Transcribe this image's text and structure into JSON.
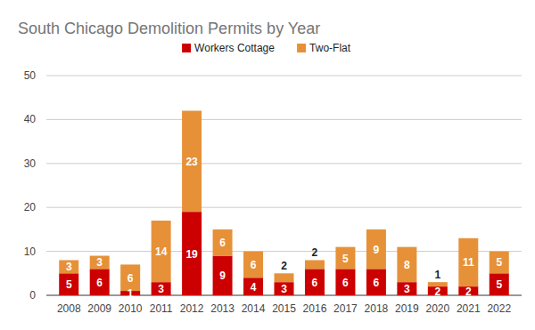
{
  "chart_data": {
    "type": "bar",
    "title": "South Chicago Demolition Permits by Year",
    "categories": [
      "2008",
      "2009",
      "2010",
      "2011",
      "2012",
      "2013",
      "2014",
      "2015",
      "2016",
      "2017",
      "2018",
      "2019",
      "2020",
      "2021",
      "2022"
    ],
    "series": [
      {
        "name": "Workers Cottage",
        "color": "#cc0000",
        "values": [
          5,
          6,
          1,
          3,
          19,
          9,
          4,
          3,
          6,
          6,
          6,
          3,
          2,
          2,
          5
        ]
      },
      {
        "name": "Two-Flat",
        "color": "#e69138",
        "values": [
          3,
          3,
          6,
          14,
          23,
          6,
          6,
          2,
          2,
          5,
          9,
          8,
          1,
          11,
          5
        ]
      }
    ],
    "ylim": [
      0,
      50
    ],
    "yticks": [
      0,
      10,
      20,
      30,
      40,
      50
    ],
    "grid": true,
    "stacked": true,
    "data_labels": true,
    "legend": "top"
  }
}
